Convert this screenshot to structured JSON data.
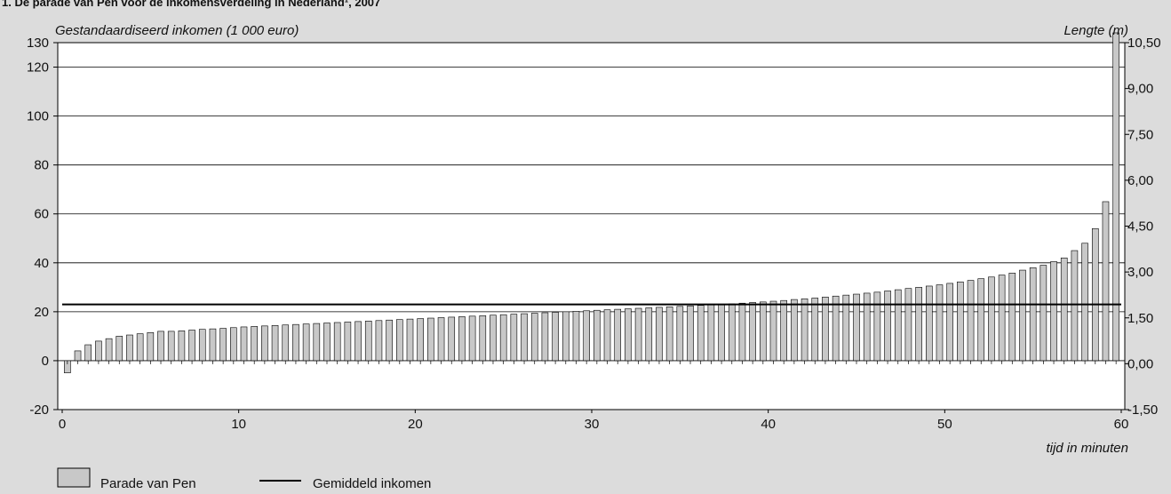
{
  "chart_title": "1. De parade van Pen voor de inkomensverdeling in Nederland¹, 2007",
  "chart_data": {
    "type": "bar",
    "ylabel_left": "Gestandaardiseerd inkomen (1 000 euro)",
    "ylabel_right": "Lengte (m)",
    "xlabel": "tijd in minuten",
    "ylim": [
      -20,
      130
    ],
    "xlim": [
      0,
      60
    ],
    "y_ticks": [
      -20,
      0,
      20,
      40,
      60,
      80,
      100,
      120,
      130
    ],
    "y_tick_labels": [
      "-20",
      "0",
      "20",
      "40",
      "60",
      "80",
      "100",
      "120",
      "130"
    ],
    "y2_ticks": [
      -1.5,
      0,
      1.5,
      3,
      4.5,
      6,
      7.5,
      9,
      10.5
    ],
    "y2_tick_labels": [
      "-1,50",
      "0,00",
      "1,50",
      "3,00",
      "4,50",
      "6,00",
      "7,50",
      "9,00",
      "10,50"
    ],
    "x_ticks": [
      0,
      10,
      20,
      30,
      40,
      50,
      60
    ],
    "x_tick_labels": [
      "0",
      "10",
      "20",
      "30",
      "40",
      "50",
      "60"
    ],
    "grid": true,
    "legend_position": "bottom-left",
    "series": [
      {
        "name": "Parade van Pen",
        "kind": "bar",
        "color": "#c8c8c8",
        "values": [
          -5,
          4,
          6.5,
          8,
          9,
          10,
          10.5,
          11,
          11.5,
          12,
          12,
          12.2,
          12.5,
          12.8,
          13,
          13.2,
          13.5,
          13.8,
          14,
          14.2,
          14.4,
          14.6,
          14.8,
          15,
          15.2,
          15.4,
          15.6,
          15.8,
          16,
          16.2,
          16.4,
          16.6,
          16.8,
          17,
          17.2,
          17.4,
          17.6,
          17.8,
          18,
          18.2,
          18.4,
          18.6,
          18.8,
          19,
          19.2,
          19.4,
          19.6,
          19.8,
          20,
          20.2,
          20.4,
          20.6,
          20.8,
          21,
          21.2,
          21.4,
          21.6,
          21.8,
          22,
          22.2,
          22.4,
          22.6,
          22.8,
          23,
          23.2,
          23.5,
          23.8,
          24,
          24.3,
          24.6,
          25,
          25.3,
          25.6,
          26,
          26.4,
          26.8,
          27.2,
          27.6,
          28,
          28.5,
          29,
          29.5,
          30,
          30.5,
          31,
          31.6,
          32.2,
          32.8,
          33.5,
          34.2,
          35,
          35.8,
          37,
          38,
          39,
          40.5,
          42,
          45,
          48,
          54,
          65,
          134
        ]
      },
      {
        "name": "Gemiddeld inkomen",
        "kind": "line",
        "color": "#000000",
        "value": 23
      }
    ]
  }
}
